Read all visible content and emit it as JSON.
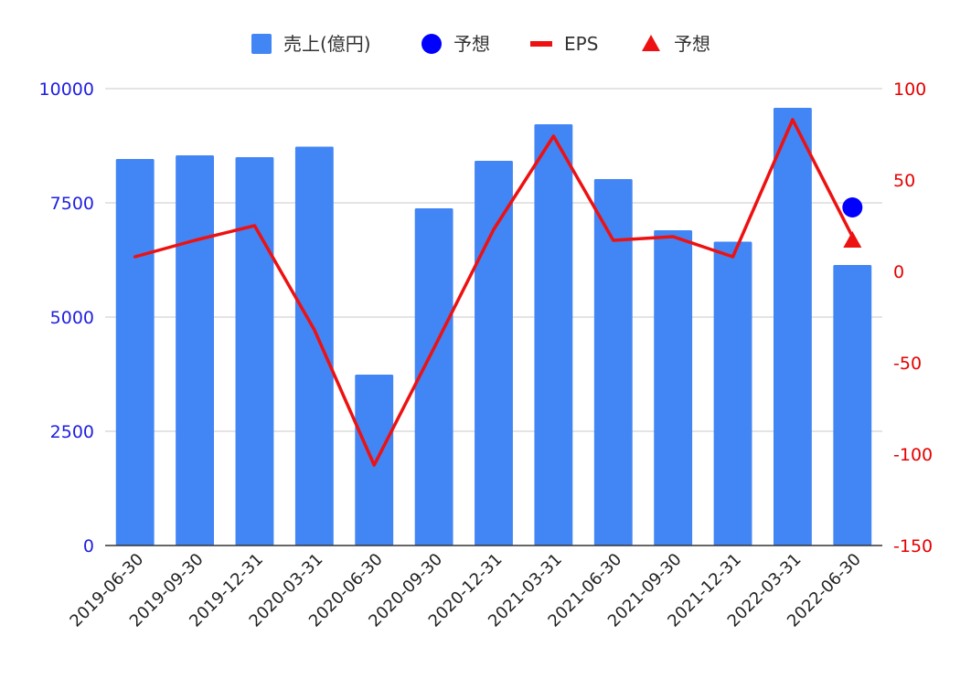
{
  "chart_data": {
    "type": "bar",
    "categories": [
      "2019-06-30",
      "2019-09-30",
      "2019-12-31",
      "2020-03-31",
      "2020-06-30",
      "2020-09-30",
      "2020-12-31",
      "2021-03-31",
      "2021-06-30",
      "2021-09-30",
      "2021-12-31",
      "2022-03-31",
      "2022-06-30"
    ],
    "series": [
      {
        "name": "売上(億円)",
        "type": "bar",
        "axis": "left",
        "color": "#4285f4",
        "values": [
          8460,
          8540,
          8500,
          8730,
          3740,
          7380,
          8420,
          9220,
          8020,
          6900,
          6650,
          9580,
          6140
        ]
      },
      {
        "name": "予想",
        "type": "point",
        "marker": "circle",
        "axis": "left",
        "color": "#0000ff",
        "values": [
          null,
          null,
          null,
          null,
          null,
          null,
          null,
          null,
          null,
          null,
          null,
          null,
          7400
        ]
      },
      {
        "name": "EPS",
        "type": "line",
        "axis": "right",
        "color": "#ee1111",
        "values": [
          8,
          17,
          25,
          -32,
          -106,
          -42,
          23,
          74,
          17,
          19,
          8,
          83,
          19
        ]
      },
      {
        "name": "予想",
        "type": "point",
        "marker": "triangle",
        "axis": "right",
        "color": "#ee1111",
        "values": [
          null,
          null,
          null,
          null,
          null,
          null,
          null,
          null,
          null,
          null,
          null,
          null,
          17
        ]
      }
    ],
    "y_left": {
      "ylim": [
        0,
        10000
      ],
      "ticks": [
        0,
        2500,
        5000,
        7500,
        10000
      ],
      "tick_labels": [
        "0",
        "2500",
        "5000",
        "7500",
        "10000"
      ],
      "color": "#1f1fe0"
    },
    "y_right": {
      "ylim": [
        -150,
        100
      ],
      "ticks": [
        -150,
        -100,
        -50,
        0,
        50,
        100
      ],
      "tick_labels": [
        "-150",
        "-100",
        "-50",
        "0",
        "50",
        "100"
      ],
      "color": "#e60000"
    },
    "grid": true,
    "legend_position": "top-center",
    "title": "",
    "xlabel": "",
    "ylabel": ""
  }
}
